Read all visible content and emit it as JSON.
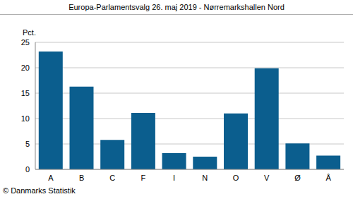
{
  "chart_data": {
    "type": "bar",
    "title": "Europa-Parlamentsvalg 26. maj 2019 - Nørremarkshallen Nord",
    "ylabel": "Pct.",
    "annotations": [
      "© Danmarks Statistik"
    ],
    "categories": [
      "A",
      "B",
      "C",
      "F",
      "I",
      "N",
      "O",
      "V",
      "Ø",
      "Å"
    ],
    "values": [
      23.2,
      16.3,
      5.8,
      11.1,
      3.2,
      2.5,
      11.0,
      19.9,
      5.1,
      2.7
    ],
    "color": "#0b5e8e",
    "ylim": [
      0,
      25
    ],
    "yticks": [
      0,
      5,
      10,
      15,
      20,
      25
    ],
    "grid": true
  }
}
